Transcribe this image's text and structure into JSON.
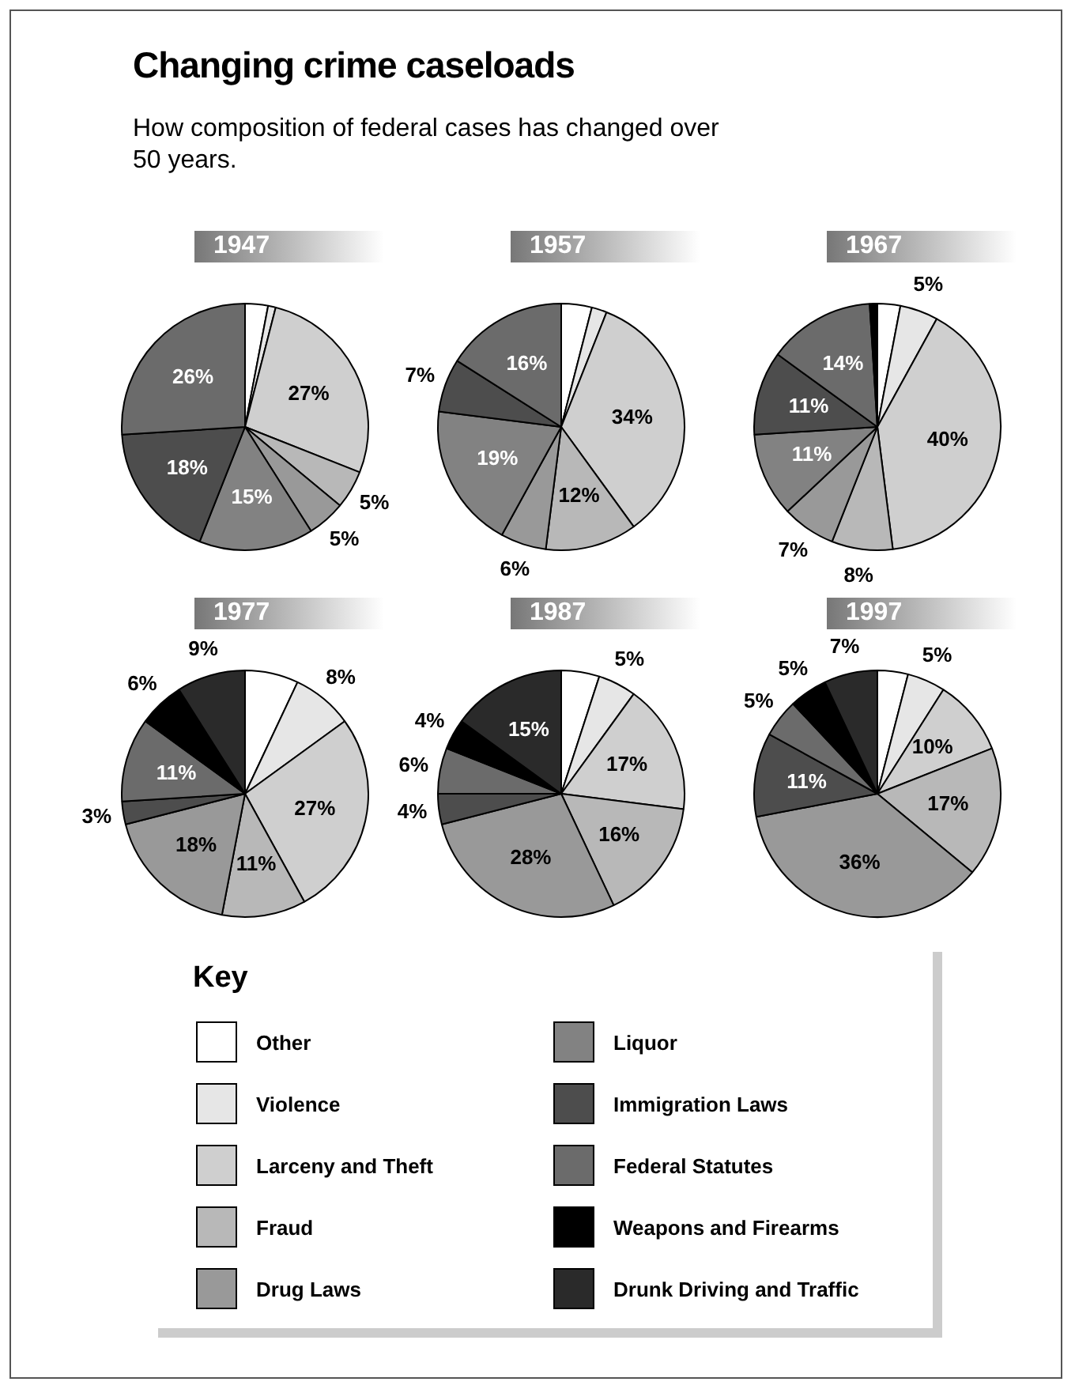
{
  "chart_data": {
    "type": "pie",
    "title": "Changing crime caseloads",
    "subtitle": "How composition of federal cases has changed over 50 years.",
    "legend_title": "Key",
    "legend": "bottom",
    "categories": [
      "Other",
      "Violence",
      "Larceny and Theft",
      "Fraud",
      "Drug Laws",
      "Liquor",
      "Immigration Laws",
      "Federal Statutes",
      "Weapons and Firearms",
      "Drunk Driving and Traffic"
    ],
    "colors": [
      "#ffffff",
      "#e6e6e6",
      "#cfcfcf",
      "#b8b8b8",
      "#999999",
      "#828282",
      "#4d4d4d",
      "#6b6b6b",
      "#000000",
      "#2a2a2a"
    ],
    "series": [
      {
        "name": "1947",
        "values": [
          3,
          1,
          27,
          5,
          5,
          15,
          18,
          26,
          null,
          null
        ],
        "value_labels": [
          null,
          null,
          "27%",
          "5%",
          "5%",
          "15%",
          "18%",
          "26%",
          null,
          null
        ]
      },
      {
        "name": "1957",
        "values": [
          4,
          2,
          34,
          12,
          6,
          19,
          7,
          16,
          null,
          null
        ],
        "value_labels": [
          null,
          null,
          "34%",
          "12%",
          "6%",
          "19%",
          "7%",
          "16%",
          null,
          null
        ]
      },
      {
        "name": "1967",
        "values": [
          3,
          5,
          40,
          8,
          7,
          11,
          11,
          14,
          1,
          null
        ],
        "value_labels": [
          null,
          "5%",
          "40%",
          "8%",
          "7%",
          "11%",
          "11%",
          "14%",
          null,
          null
        ]
      },
      {
        "name": "1977",
        "values": [
          7,
          8,
          27,
          11,
          18,
          null,
          3,
          11,
          6,
          9
        ],
        "value_labels": [
          null,
          "8%",
          "27%",
          "11%",
          "18%",
          null,
          "3%",
          "11%",
          "6%",
          "9%"
        ]
      },
      {
        "name": "1987",
        "values": [
          5,
          5,
          17,
          16,
          28,
          null,
          4,
          6,
          4,
          15
        ],
        "value_labels": [
          null,
          "5%",
          "17%",
          "16%",
          "28%",
          null,
          "4%",
          "6%",
          "4%",
          "15%"
        ]
      },
      {
        "name": "1997",
        "values": [
          4,
          5,
          10,
          17,
          36,
          null,
          11,
          5,
          5,
          7
        ],
        "value_labels": [
          null,
          "5%",
          "10%",
          "17%",
          "36%",
          null,
          "11%",
          "5%",
          "5%",
          "7%"
        ]
      }
    ]
  }
}
